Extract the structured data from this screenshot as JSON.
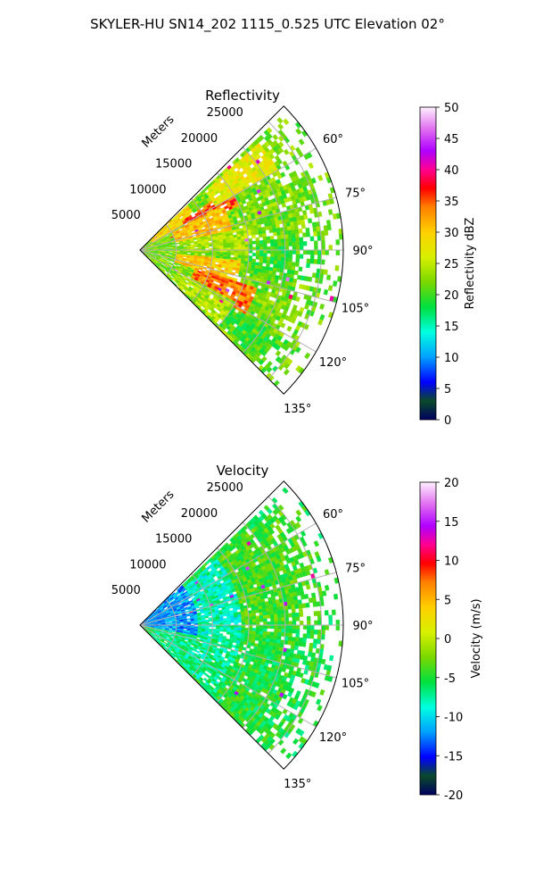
{
  "figure": {
    "title": "SKYLER-HU  SN14_202  1115_0.525 UTC Elevation 02°"
  },
  "chart_data": [
    {
      "type": "heatmap",
      "subtype": "polar-sector",
      "title": "Reflectivity",
      "radial_axis_label": "Meters",
      "radial_ticks": [
        5000,
        10000,
        15000,
        20000,
        25000
      ],
      "radial_tick_labels": [
        "5000",
        "10000",
        "15000",
        "20000",
        "25000"
      ],
      "radial_range": [
        0,
        28000
      ],
      "theta_ticks": [
        60,
        75,
        90,
        105,
        120,
        135
      ],
      "theta_tick_labels": [
        "60°",
        "75°",
        "90°",
        "105°",
        "120°",
        "135°"
      ],
      "theta_range": [
        45,
        135
      ],
      "colorbar": {
        "label": "Reflectivity dBZ",
        "range": [
          0,
          50
        ],
        "ticks": [
          0,
          5,
          10,
          15,
          20,
          25,
          30,
          35,
          40,
          45,
          50
        ],
        "tick_labels": [
          "0",
          "5",
          "10",
          "15",
          "20",
          "25",
          "30",
          "35",
          "40",
          "45",
          "50"
        ]
      },
      "field_bands": [
        {
          "theta": [
            45,
            60
          ],
          "r": [
            2000,
            9000
          ],
          "value": 29
        },
        {
          "theta": [
            56,
            66
          ],
          "r": [
            7000,
            15000
          ],
          "value": 35
        },
        {
          "theta": [
            48,
            60
          ],
          "r": [
            12000,
            22000
          ],
          "value": 27
        },
        {
          "theta": [
            62,
            78
          ],
          "r": [
            5000,
            13000
          ],
          "value": 31
        },
        {
          "theta": [
            66,
            80
          ],
          "r": [
            13000,
            24000
          ],
          "value": 22
        },
        {
          "theta": [
            78,
            92
          ],
          "r": [
            6000,
            16000
          ],
          "value": 24
        },
        {
          "theta": [
            86,
            102
          ],
          "r": [
            15000,
            25000
          ],
          "value": 20
        },
        {
          "theta": [
            96,
            110
          ],
          "r": [
            5000,
            14000
          ],
          "value": 30
        },
        {
          "theta": [
            108,
            122
          ],
          "r": [
            8000,
            17000
          ],
          "value": 34
        },
        {
          "theta": [
            118,
            134
          ],
          "r": [
            6000,
            15000
          ],
          "value": 24
        },
        {
          "theta": [
            122,
            134
          ],
          "r": [
            15000,
            25000
          ],
          "value": 20
        }
      ],
      "background_value": 22
    },
    {
      "type": "heatmap",
      "subtype": "polar-sector",
      "title": "Velocity",
      "radial_axis_label": "Meters",
      "radial_ticks": [
        5000,
        10000,
        15000,
        20000,
        25000
      ],
      "radial_tick_labels": [
        "5000",
        "10000",
        "15000",
        "20000",
        "25000"
      ],
      "radial_range": [
        0,
        28000
      ],
      "theta_ticks": [
        60,
        75,
        90,
        105,
        120,
        135
      ],
      "theta_tick_labels": [
        "60°",
        "75°",
        "90°",
        "105°",
        "120°",
        "135°"
      ],
      "theta_range": [
        45,
        135
      ],
      "colorbar": {
        "label": "Velocity (m/s)",
        "range": [
          -20,
          20
        ],
        "ticks": [
          -20,
          -15,
          -10,
          -5,
          0,
          5,
          10,
          15,
          20
        ],
        "tick_labels": [
          "-20",
          "-15",
          "-10",
          "-5",
          "0",
          "5",
          "10",
          "15",
          "20"
        ]
      },
      "field_bands": [
        {
          "theta": [
            45,
            100
          ],
          "r": [
            0,
            8000
          ],
          "value": -12
        },
        {
          "theta": [
            50,
            80
          ],
          "r": [
            8000,
            14000
          ],
          "value": -8
        },
        {
          "theta": [
            80,
            120
          ],
          "r": [
            8000,
            16000
          ],
          "value": -8
        },
        {
          "theta": [
            50,
            90
          ],
          "r": [
            14000,
            26000
          ],
          "value": -4
        },
        {
          "theta": [
            90,
            134
          ],
          "r": [
            14000,
            26000
          ],
          "value": -5
        },
        {
          "theta": [
            100,
            134
          ],
          "r": [
            2000,
            14000
          ],
          "value": -7
        }
      ],
      "background_value": -5
    }
  ]
}
